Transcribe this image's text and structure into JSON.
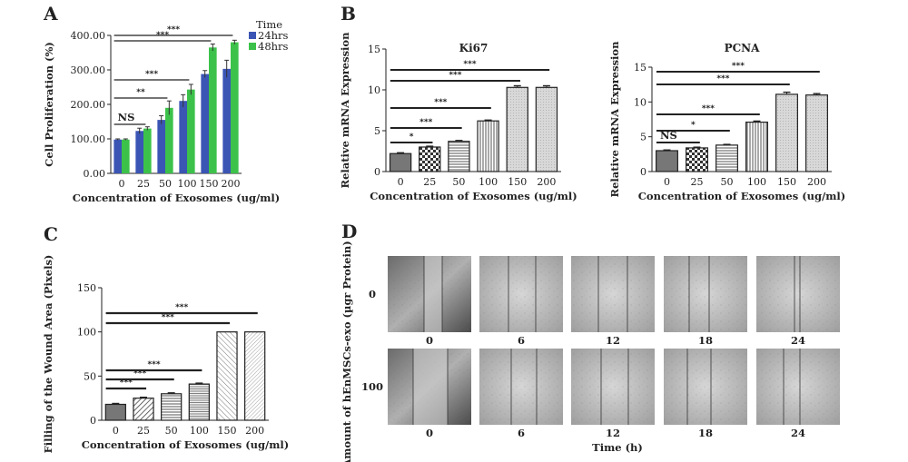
{
  "panels": {
    "A": "A",
    "B": "B",
    "C": "C",
    "D": "D"
  },
  "chart_data": [
    {
      "id": "A",
      "type": "bar",
      "xlabel": "Concentration of Exosomes (ug/ml)",
      "ylabel": "Cell Proliferation (%)",
      "categories": [
        "0",
        "25",
        "50",
        "100",
        "150",
        "200"
      ],
      "ylim": [
        0,
        400
      ],
      "yticks": [
        "0.00",
        "100.00",
        "200.00",
        "300.00",
        "400.00"
      ],
      "legend_title": "Time",
      "legend_position": "top-right",
      "series": [
        {
          "name": "24hrs",
          "color": "#3b55b4",
          "values": [
            98,
            123,
            155,
            210,
            288,
            303
          ],
          "errors": [
            2,
            8,
            12,
            18,
            10,
            25
          ]
        },
        {
          "name": "48hrs",
          "color": "#3cc24a",
          "values": [
            98,
            130,
            190,
            243,
            365,
            380
          ],
          "errors": [
            2,
            5,
            20,
            15,
            10,
            6
          ]
        }
      ],
      "annotations": [
        {
          "label": "NS",
          "from": "0",
          "to": "25"
        },
        {
          "label": "**",
          "from": "0",
          "to": "50"
        },
        {
          "label": "***",
          "from": "0",
          "to": "100"
        },
        {
          "label": "***",
          "from": "0",
          "to": "150"
        },
        {
          "label": "***",
          "from": "0",
          "to": "200"
        }
      ]
    },
    {
      "id": "B1",
      "type": "bar",
      "title": "Ki67",
      "xlabel": "Concentration of Exosomes (ug/ml)",
      "ylabel": "Relative mRNA Expression",
      "categories": [
        "0",
        "25",
        "50",
        "100",
        "150",
        "200"
      ],
      "ylim": [
        0,
        15
      ],
      "yticks": [
        "0",
        "5",
        "10",
        "15"
      ],
      "values": [
        2.2,
        3.0,
        3.7,
        6.2,
        10.3,
        10.3
      ],
      "errors": [
        0.1,
        0.1,
        0.1,
        0.1,
        0.2,
        0.2
      ],
      "patterns": [
        "dark",
        "check",
        "hline",
        "vline",
        "light",
        "light"
      ],
      "annotations": [
        {
          "label": "*",
          "from": "0",
          "to": "25"
        },
        {
          "label": "***",
          "from": "0",
          "to": "50"
        },
        {
          "label": "***",
          "from": "0",
          "to": "100"
        },
        {
          "label": "***",
          "from": "0",
          "to": "150"
        },
        {
          "label": "***",
          "from": "0",
          "to": "200"
        }
      ]
    },
    {
      "id": "B2",
      "type": "bar",
      "title": "PCNA",
      "xlabel": "Concentration of Exosomes (ug/ml)",
      "ylabel": "Relative mRNA Expression",
      "categories": [
        "0",
        "25",
        "50",
        "100",
        "150",
        "200"
      ],
      "ylim": [
        0,
        15
      ],
      "yticks": [
        "0",
        "5",
        "10",
        "15"
      ],
      "values": [
        3.0,
        3.4,
        3.8,
        7.1,
        11.1,
        11.0
      ],
      "errors": [
        0.1,
        0.1,
        0.1,
        0.15,
        0.3,
        0.2
      ],
      "patterns": [
        "dark",
        "check",
        "hline",
        "vline",
        "light",
        "light"
      ],
      "annotations": [
        {
          "label": "NS",
          "from": "0",
          "to": "25"
        },
        {
          "label": "*",
          "from": "0",
          "to": "50"
        },
        {
          "label": "***",
          "from": "0",
          "to": "100"
        },
        {
          "label": "***",
          "from": "0",
          "to": "150"
        },
        {
          "label": "***",
          "from": "0",
          "to": "200"
        }
      ]
    },
    {
      "id": "C",
      "type": "bar",
      "xlabel": "Concentration of Exosomes (ug/ml)",
      "ylabel": "Filling of the Wound Area (Pixels)",
      "categories": [
        "0",
        "25",
        "50",
        "100",
        "150",
        "200"
      ],
      "ylim": [
        0,
        150
      ],
      "yticks": [
        "0",
        "50",
        "100",
        "150"
      ],
      "values": [
        18,
        25,
        30,
        41,
        100,
        100
      ],
      "errors": [
        1,
        1,
        1,
        1,
        0,
        0
      ],
      "patterns": [
        "dark",
        "diag",
        "hline",
        "hline2",
        "diag2",
        "diag3"
      ],
      "annotations": [
        {
          "label": "***",
          "from": "0",
          "to": "25"
        },
        {
          "label": "***",
          "from": "0",
          "to": "50"
        },
        {
          "label": "***",
          "from": "0",
          "to": "100"
        },
        {
          "label": "***",
          "from": "0",
          "to": "150"
        },
        {
          "label": "***",
          "from": "0",
          "to": "200"
        }
      ]
    }
  ],
  "panel_d": {
    "row_labels": [
      "0",
      "100"
    ],
    "time_labels": [
      "0",
      "6",
      "12",
      "18",
      "24"
    ],
    "xlabel": "Time (h)",
    "ylabel": "Amount of hEnMSCs-exo (µgr Protein)"
  }
}
